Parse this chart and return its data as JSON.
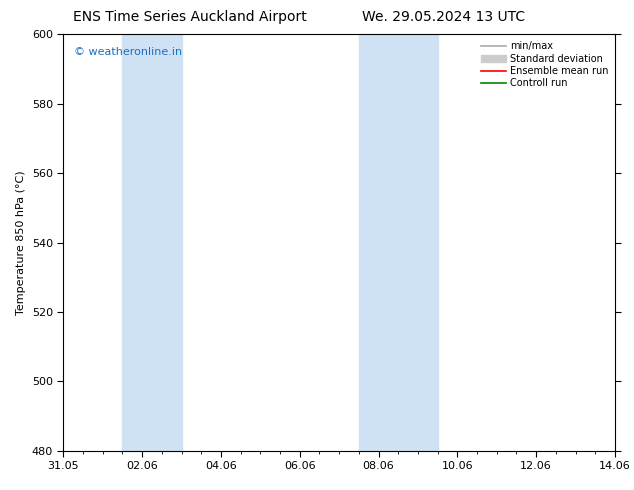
{
  "title_left": "ENS Time Series Auckland Airport",
  "title_right": "We. 29.05.2024 13 UTC",
  "ylabel": "Temperature 850 hPa (°C)",
  "watermark": "© weatheronline.in",
  "watermark_color": "#1a6fc4",
  "ylim": [
    480,
    600
  ],
  "yticks": [
    480,
    500,
    520,
    540,
    560,
    580,
    600
  ],
  "x_start_num": 0,
  "x_end_num": 14,
  "xtick_labels": [
    "31.05",
    "02.06",
    "04.06",
    "06.06",
    "08.06",
    "10.06",
    "12.06",
    "14.06"
  ],
  "xtick_positions": [
    0,
    2,
    4,
    6,
    8,
    10,
    12,
    14
  ],
  "shaded_bands": [
    {
      "x_start": 1.5,
      "x_end": 3.0,
      "color": "#cfe2f3"
    },
    {
      "x_start": 7.5,
      "x_end": 9.5,
      "color": "#cfe2f3"
    }
  ],
  "legend_items": [
    {
      "label": "min/max",
      "color": "#aaaaaa",
      "lw": 1.2,
      "style": "solid",
      "type": "line"
    },
    {
      "label": "Standard deviation",
      "color": "#cccccc",
      "lw": 8,
      "style": "solid",
      "type": "band"
    },
    {
      "label": "Ensemble mean run",
      "color": "#ff0000",
      "lw": 1.2,
      "style": "solid",
      "type": "line"
    },
    {
      "label": "Controll run",
      "color": "#008800",
      "lw": 1.2,
      "style": "solid",
      "type": "line"
    }
  ],
  "background_color": "#ffffff",
  "plot_bg_color": "#ffffff",
  "title_fontsize": 10,
  "axis_label_fontsize": 8,
  "tick_fontsize": 8,
  "watermark_fontsize": 8
}
